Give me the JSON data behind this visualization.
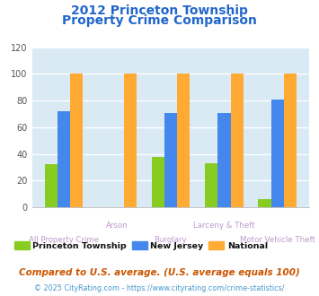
{
  "title_line1": "2012 Princeton Township",
  "title_line2": "Property Crime Comparison",
  "title_color": "#2266cc",
  "categories_odd": [
    "Arson",
    "Larceny & Theft"
  ],
  "categories_even": [
    "All Property Crime",
    "Burglary",
    "Motor Vehicle Theft"
  ],
  "princeton": [
    32,
    0,
    38,
    33,
    6
  ],
  "new_jersey": [
    72,
    0,
    71,
    71,
    81
  ],
  "national": [
    100,
    100,
    100,
    100,
    100
  ],
  "princeton_color": "#88cc22",
  "nj_color": "#4488ee",
  "national_color": "#ffaa33",
  "ylim": [
    0,
    120
  ],
  "yticks": [
    0,
    20,
    40,
    60,
    80,
    100,
    120
  ],
  "xlabel_color": "#bb99cc",
  "bg_color": "#daeaf5",
  "legend_labels": [
    "Princeton Township",
    "New Jersey",
    "National"
  ],
  "footnote1": "Compared to U.S. average. (U.S. average equals 100)",
  "footnote2": "© 2025 CityRating.com - https://www.cityrating.com/crime-statistics/",
  "footnote1_color": "#cc5500",
  "footnote2_color": "#4499cc",
  "footnote1_fontsize": 7.5,
  "footnote2_fontsize": 5.8
}
